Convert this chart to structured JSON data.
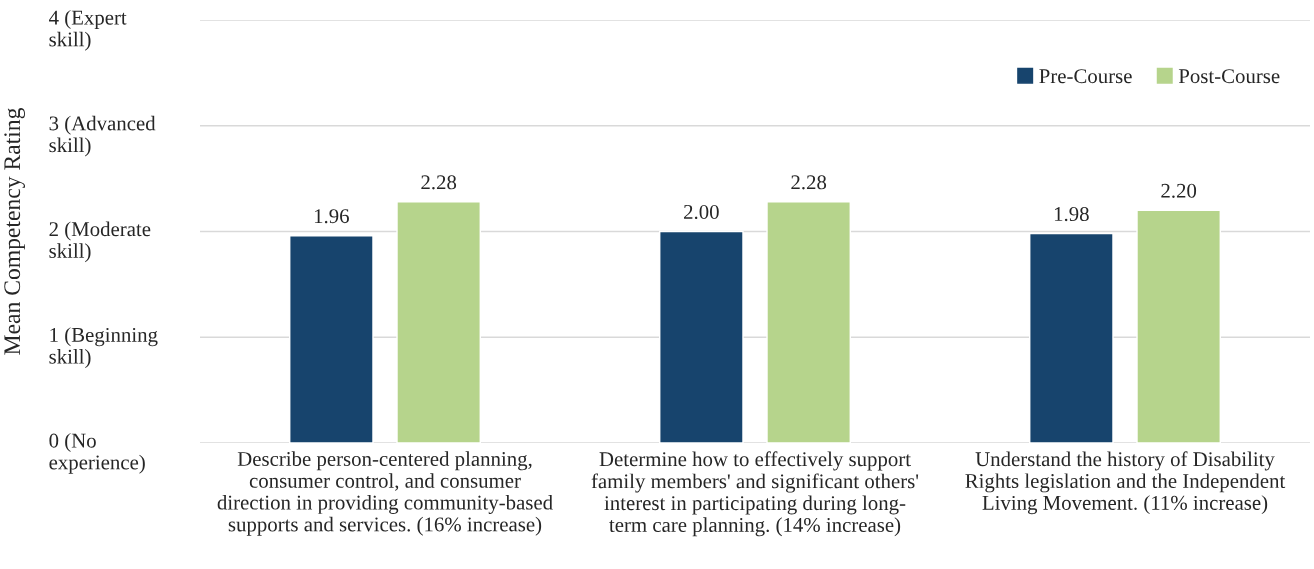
{
  "chart_data": {
    "type": "bar",
    "ylabel": "Mean Competency Rating",
    "categories": [
      "Describe person-centered planning,\nconsumer control, and consumer\ndirection in providing community-based\nsupports and services. (16% increase)",
      "Determine how to effectively support\nfamily members' and significant others'\ninterest in participating during long-\nterm care planning. (14% increase)",
      "Understand the history of Disability\nRights legislation and the Independent\nLiving Movement. (11% increase)"
    ],
    "series": [
      {
        "name": "Pre-Course",
        "color": "#17446d",
        "values": [
          1.96,
          2.0,
          1.98
        ],
        "value_labels": [
          "1.96",
          "2.00",
          "1.98"
        ]
      },
      {
        "name": "Post-Course",
        "color": "#b6d48c",
        "values": [
          2.28,
          2.28,
          2.2
        ],
        "value_labels": [
          "2.28",
          "2.28",
          "2.20"
        ]
      }
    ],
    "ylim": [
      0,
      4
    ],
    "yticks": [
      {
        "value": 0,
        "label": "0 (No\nexperience)"
      },
      {
        "value": 1,
        "label": "1 (Beginning\nskill)"
      },
      {
        "value": 2,
        "label": "2 (Moderate\nskill)"
      },
      {
        "value": 3,
        "label": "3 (Advanced\nskill)"
      },
      {
        "value": 4,
        "label": "4 (Expert\nskill)"
      }
    ],
    "grid": "y",
    "legend": "top right"
  }
}
